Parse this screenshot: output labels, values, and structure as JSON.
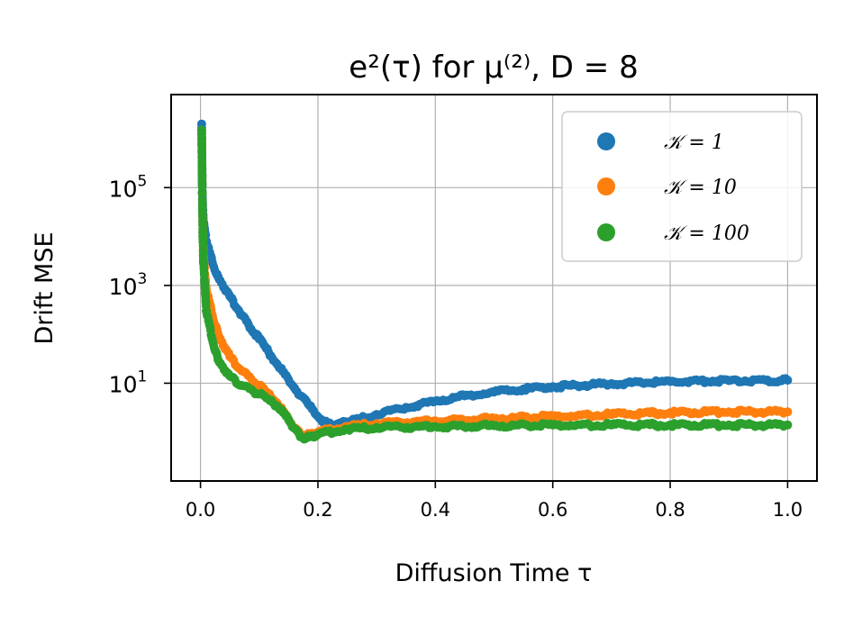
{
  "chart_data": {
    "type": "scatter",
    "title": "e²(τ) for μ⁽²⁾, D = 8",
    "xlabel": "Diffusion Time τ",
    "ylabel": "Drift MSE",
    "yscale": "log",
    "xlim": [
      -0.05,
      1.05
    ],
    "ylim": [
      0.1,
      8000000
    ],
    "xticks": [
      "0.0",
      "0.2",
      "0.4",
      "0.6",
      "0.8",
      "1.0"
    ],
    "yticks": [
      {
        "value": 10,
        "base": "10",
        "exp": "1"
      },
      {
        "value": 1000,
        "base": "10",
        "exp": "3"
      },
      {
        "value": 100000,
        "base": "10",
        "exp": "5"
      }
    ],
    "grid": true,
    "legend_position": "top-right",
    "colors": {
      "k1": "#1f77b4",
      "k10": "#ff7f0e",
      "k100": "#2ca02c"
    },
    "series": [
      {
        "name": "𝒦 = 1",
        "color": "#1f77b4",
        "points": [
          [
            0.002,
            2000000
          ],
          [
            0.003,
            120000
          ],
          [
            0.004,
            35000
          ],
          [
            0.005,
            20000
          ],
          [
            0.01,
            8000
          ],
          [
            0.02,
            3000
          ],
          [
            0.03,
            1500
          ],
          [
            0.05,
            600
          ],
          [
            0.07,
            250
          ],
          [
            0.1,
            80
          ],
          [
            0.13,
            25
          ],
          [
            0.16,
            8
          ],
          [
            0.19,
            3
          ],
          [
            0.21,
            1.6
          ],
          [
            0.23,
            1.4
          ],
          [
            0.25,
            1.6
          ],
          [
            0.3,
            2.3
          ],
          [
            0.35,
            3.2
          ],
          [
            0.4,
            4.3
          ],
          [
            0.45,
            5.5
          ],
          [
            0.5,
            6.6
          ],
          [
            0.55,
            7.6
          ],
          [
            0.6,
            8.5
          ],
          [
            0.7,
            9.8
          ],
          [
            0.8,
            10.8
          ],
          [
            0.9,
            11.3
          ],
          [
            1.0,
            11.5
          ]
        ]
      },
      {
        "name": "𝒦 = 10",
        "color": "#ff7f0e",
        "points": [
          [
            0.002,
            1500000
          ],
          [
            0.003,
            80000
          ],
          [
            0.004,
            12000
          ],
          [
            0.005,
            4000
          ],
          [
            0.01,
            800
          ],
          [
            0.02,
            250
          ],
          [
            0.03,
            100
          ],
          [
            0.05,
            35
          ],
          [
            0.07,
            18
          ],
          [
            0.1,
            9
          ],
          [
            0.13,
            4
          ],
          [
            0.15,
            1.8
          ],
          [
            0.17,
            0.9
          ],
          [
            0.18,
            0.85
          ],
          [
            0.2,
            1.0
          ],
          [
            0.25,
            1.3
          ],
          [
            0.3,
            1.5
          ],
          [
            0.4,
            1.7
          ],
          [
            0.5,
            1.9
          ],
          [
            0.6,
            2.1
          ],
          [
            0.7,
            2.3
          ],
          [
            0.8,
            2.5
          ],
          [
            0.9,
            2.6
          ],
          [
            1.0,
            2.6
          ]
        ]
      },
      {
        "name": "𝒦 = 100",
        "color": "#2ca02c",
        "points": [
          [
            0.002,
            1500000
          ],
          [
            0.003,
            80000
          ],
          [
            0.004,
            10000
          ],
          [
            0.005,
            3000
          ],
          [
            0.01,
            300
          ],
          [
            0.02,
            80
          ],
          [
            0.03,
            30
          ],
          [
            0.05,
            14
          ],
          [
            0.07,
            9
          ],
          [
            0.1,
            6
          ],
          [
            0.13,
            3.5
          ],
          [
            0.15,
            1.8
          ],
          [
            0.17,
            0.8
          ],
          [
            0.18,
            0.75
          ],
          [
            0.2,
            0.9
          ],
          [
            0.25,
            1.15
          ],
          [
            0.3,
            1.25
          ],
          [
            0.4,
            1.3
          ],
          [
            0.5,
            1.35
          ],
          [
            0.6,
            1.4
          ],
          [
            0.7,
            1.4
          ],
          [
            0.8,
            1.4
          ],
          [
            0.9,
            1.4
          ],
          [
            1.0,
            1.4
          ]
        ]
      }
    ]
  }
}
